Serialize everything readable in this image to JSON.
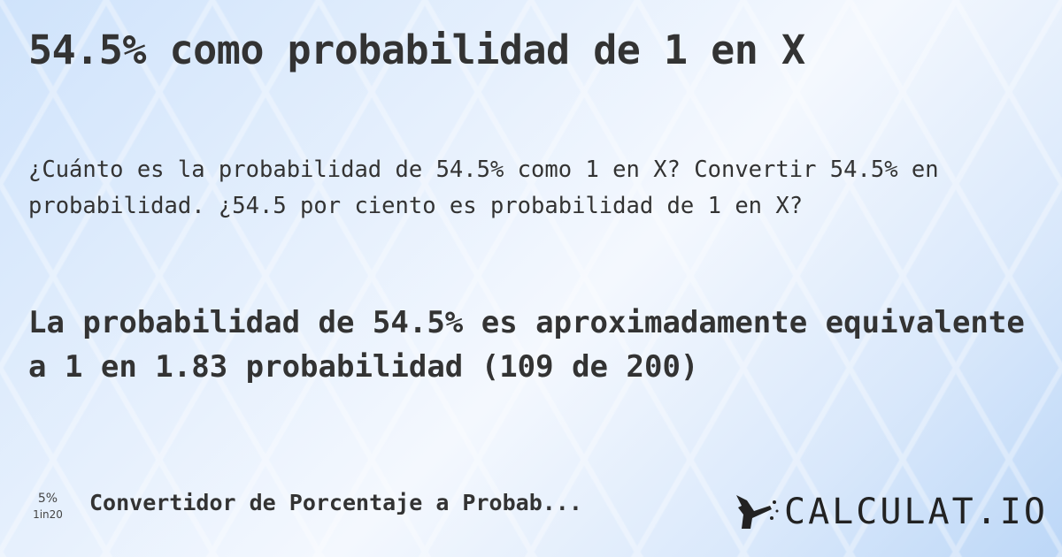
{
  "title": "54.5% como probabilidad de 1 en X",
  "question": "¿Cuánto es la probabilidad de 54.5% como 1 en X? Convertir 54.5% en probabilidad. ¿54.5 por ciento es probabilidad de 1 en X?",
  "answer": "La probabilidad de 54.5% es aproximadamente equivalente a 1 en 1.83 probabilidad (109 de 200)",
  "footer": {
    "mini_icon": {
      "percent": "5%",
      "odds": "1in20"
    },
    "link_label": "Convertidor de Porcentaje a Probab...",
    "logo": "CALCULAT.IO"
  }
}
